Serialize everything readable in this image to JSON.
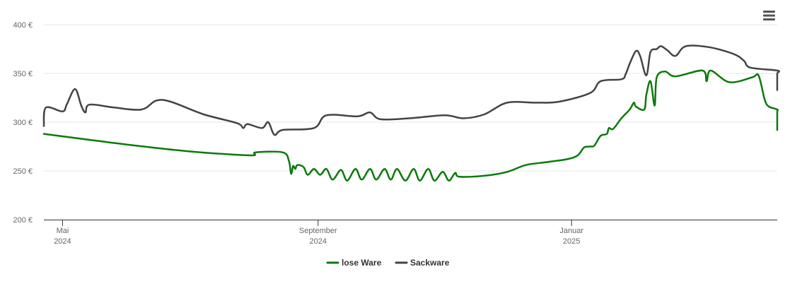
{
  "chart_data": {
    "type": "line",
    "title": "",
    "xlabel": "",
    "ylabel": "",
    "ylim": [
      200,
      400
    ],
    "y_ticks": [
      {
        "value": 200,
        "label": "200 €"
      },
      {
        "value": 250,
        "label": "250 €"
      },
      {
        "value": 300,
        "label": "300 €"
      },
      {
        "value": 350,
        "label": "350 €"
      },
      {
        "value": 400,
        "label": "400 €"
      }
    ],
    "x_range": [
      "2024-04-22",
      "2025-04-10"
    ],
    "x_ticks": [
      {
        "date": "2024-05-01",
        "label": "Mai",
        "sublabel": "2024"
      },
      {
        "date": "2024-09-01",
        "label": "September",
        "sublabel": "2024"
      },
      {
        "date": "2025-01-01",
        "label": "Januar",
        "sublabel": "2025"
      }
    ],
    "grid": "horizontal",
    "legend_position": "bottom-center",
    "series": [
      {
        "name": "lose Ware",
        "color": "#0b7a0b",
        "points": [
          [
            "2024-04-22",
            288
          ],
          [
            "2024-05-10",
            283
          ],
          [
            "2024-06-01",
            277
          ],
          [
            "2024-07-01",
            270
          ],
          [
            "2024-07-20",
            267
          ],
          [
            "2024-08-01",
            266
          ],
          [
            "2024-08-02",
            269
          ],
          [
            "2024-08-15",
            269
          ],
          [
            "2024-08-18",
            260
          ],
          [
            "2024-08-19",
            247
          ],
          [
            "2024-08-20",
            255
          ],
          [
            "2024-08-21",
            252
          ],
          [
            "2024-08-22",
            256
          ],
          [
            "2024-08-25",
            254
          ],
          [
            "2024-08-27",
            246
          ],
          [
            "2024-08-30",
            252
          ],
          [
            "2024-09-02",
            246
          ],
          [
            "2024-09-05",
            252
          ],
          [
            "2024-09-08",
            241
          ],
          [
            "2024-09-12",
            251
          ],
          [
            "2024-09-15",
            240
          ],
          [
            "2024-09-19",
            252
          ],
          [
            "2024-09-22",
            241
          ],
          [
            "2024-09-26",
            252
          ],
          [
            "2024-09-29",
            241
          ],
          [
            "2024-10-03",
            252
          ],
          [
            "2024-10-06",
            241
          ],
          [
            "2024-10-09",
            252
          ],
          [
            "2024-10-13",
            240
          ],
          [
            "2024-10-17",
            252
          ],
          [
            "2024-10-20",
            240
          ],
          [
            "2024-10-24",
            252
          ],
          [
            "2024-10-27",
            240
          ],
          [
            "2024-10-31",
            249
          ],
          [
            "2024-11-03",
            240
          ],
          [
            "2024-11-06",
            248
          ],
          [
            "2024-11-08",
            244
          ],
          [
            "2024-11-20",
            245
          ],
          [
            "2024-12-01",
            249
          ],
          [
            "2024-12-10",
            256
          ],
          [
            "2024-12-20",
            259
          ],
          [
            "2024-12-30",
            262
          ],
          [
            "2025-01-04",
            266
          ],
          [
            "2025-01-07",
            274
          ],
          [
            "2025-01-10",
            275
          ],
          [
            "2025-01-12",
            276
          ],
          [
            "2025-01-15",
            286
          ],
          [
            "2025-01-18",
            288
          ],
          [
            "2025-01-19",
            294
          ],
          [
            "2025-01-21",
            293
          ],
          [
            "2025-01-25",
            304
          ],
          [
            "2025-01-29",
            313
          ],
          [
            "2025-01-31",
            320
          ],
          [
            "2025-02-01",
            316
          ],
          [
            "2025-02-05",
            313
          ],
          [
            "2025-02-06",
            328
          ],
          [
            "2025-02-08",
            342
          ],
          [
            "2025-02-10",
            317
          ],
          [
            "2025-02-11",
            346
          ],
          [
            "2025-02-15",
            352
          ],
          [
            "2025-02-20",
            347
          ],
          [
            "2025-03-05",
            353
          ],
          [
            "2025-03-07",
            342
          ],
          [
            "2025-03-09",
            353
          ],
          [
            "2025-03-18",
            341
          ],
          [
            "2025-03-29",
            346
          ],
          [
            "2025-04-01",
            348
          ],
          [
            "2025-04-04",
            323
          ],
          [
            "2025-04-06",
            316
          ],
          [
            "2025-04-14",
            313
          ],
          [
            "2025-04-16",
            310
          ],
          [
            "2025-04-18",
            292
          ]
        ]
      },
      {
        "name": "Sackware",
        "color": "#444444",
        "points": [
          [
            "2024-04-22",
            296
          ],
          [
            "2024-04-23",
            315
          ],
          [
            "2024-05-01",
            311
          ],
          [
            "2024-05-03",
            318
          ],
          [
            "2024-05-07",
            334
          ],
          [
            "2024-05-10",
            317
          ],
          [
            "2024-05-12",
            310
          ],
          [
            "2024-05-14",
            318
          ],
          [
            "2024-05-26",
            315
          ],
          [
            "2024-06-08",
            313
          ],
          [
            "2024-06-15",
            322
          ],
          [
            "2024-06-22",
            321
          ],
          [
            "2024-07-08",
            308
          ],
          [
            "2024-07-24",
            299
          ],
          [
            "2024-07-27",
            294
          ],
          [
            "2024-07-29",
            298
          ],
          [
            "2024-08-05",
            294
          ],
          [
            "2024-08-08",
            300
          ],
          [
            "2024-08-11",
            287
          ],
          [
            "2024-08-15",
            292
          ],
          [
            "2024-08-30",
            294
          ],
          [
            "2024-09-05",
            307
          ],
          [
            "2024-09-20",
            306
          ],
          [
            "2024-09-26",
            310
          ],
          [
            "2024-10-01",
            303
          ],
          [
            "2024-10-15",
            304
          ],
          [
            "2024-11-01",
            307
          ],
          [
            "2024-11-10",
            304
          ],
          [
            "2024-11-20",
            308
          ],
          [
            "2024-12-01",
            320
          ],
          [
            "2024-12-15",
            320
          ],
          [
            "2024-12-26",
            321
          ],
          [
            "2025-01-10",
            330
          ],
          [
            "2025-01-15",
            342
          ],
          [
            "2025-01-25",
            344
          ],
          [
            "2025-01-27",
            349
          ],
          [
            "2025-01-29",
            360
          ],
          [
            "2025-02-01",
            373
          ],
          [
            "2025-02-03",
            368
          ],
          [
            "2025-02-06",
            348
          ],
          [
            "2025-02-08",
            372
          ],
          [
            "2025-02-11",
            375
          ],
          [
            "2025-02-13",
            378
          ],
          [
            "2025-02-16",
            374
          ],
          [
            "2025-02-20",
            368
          ],
          [
            "2025-02-25",
            378
          ],
          [
            "2025-03-08",
            377
          ],
          [
            "2025-03-20",
            370
          ],
          [
            "2025-03-25",
            363
          ],
          [
            "2025-03-28",
            356
          ],
          [
            "2025-04-10",
            353
          ],
          [
            "2025-04-15",
            350
          ],
          [
            "2025-04-17",
            345
          ],
          [
            "2025-04-18",
            333
          ]
        ]
      }
    ]
  },
  "toolbar": {
    "menu_icon": "hamburger-menu-icon"
  }
}
